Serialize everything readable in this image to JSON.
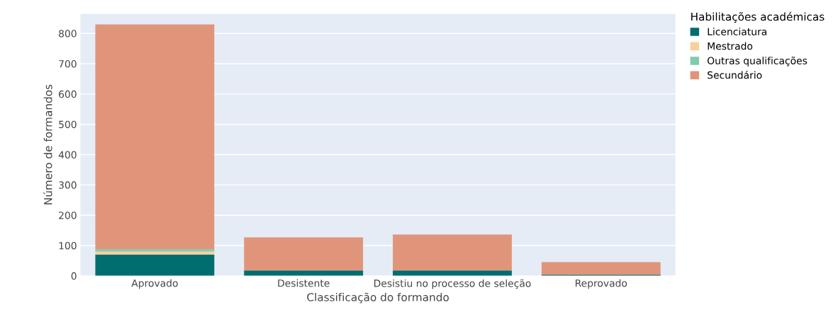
{
  "chart_data": {
    "type": "bar",
    "stacked": true,
    "xlabel": "Classificação do formando",
    "ylabel": "Número de formandos",
    "legend_title": "Habilitações académicas",
    "legend": "top right",
    "categories": [
      "Aprovado",
      "Desistente",
      "Desistiu no processo de seleção",
      "Reprovado"
    ],
    "series": [
      {
        "name": "Licenciatura",
        "color": "#006d6f",
        "values": [
          70,
          18,
          18,
          4
        ]
      },
      {
        "name": "Mestrado",
        "color": "#f6cf9a",
        "values": [
          10,
          0,
          0,
          0
        ]
      },
      {
        "name": "Outras qualificações",
        "color": "#7fcbb0",
        "values": [
          8,
          0,
          0,
          0
        ]
      },
      {
        "name": "Secundário",
        "color": "#e0957a",
        "values": [
          742,
          109,
          118,
          41
        ]
      }
    ],
    "ylim": [
      0,
      865
    ],
    "yticks": [
      0,
      100,
      200,
      300,
      400,
      500,
      600,
      700,
      800
    ],
    "grid": "y"
  }
}
